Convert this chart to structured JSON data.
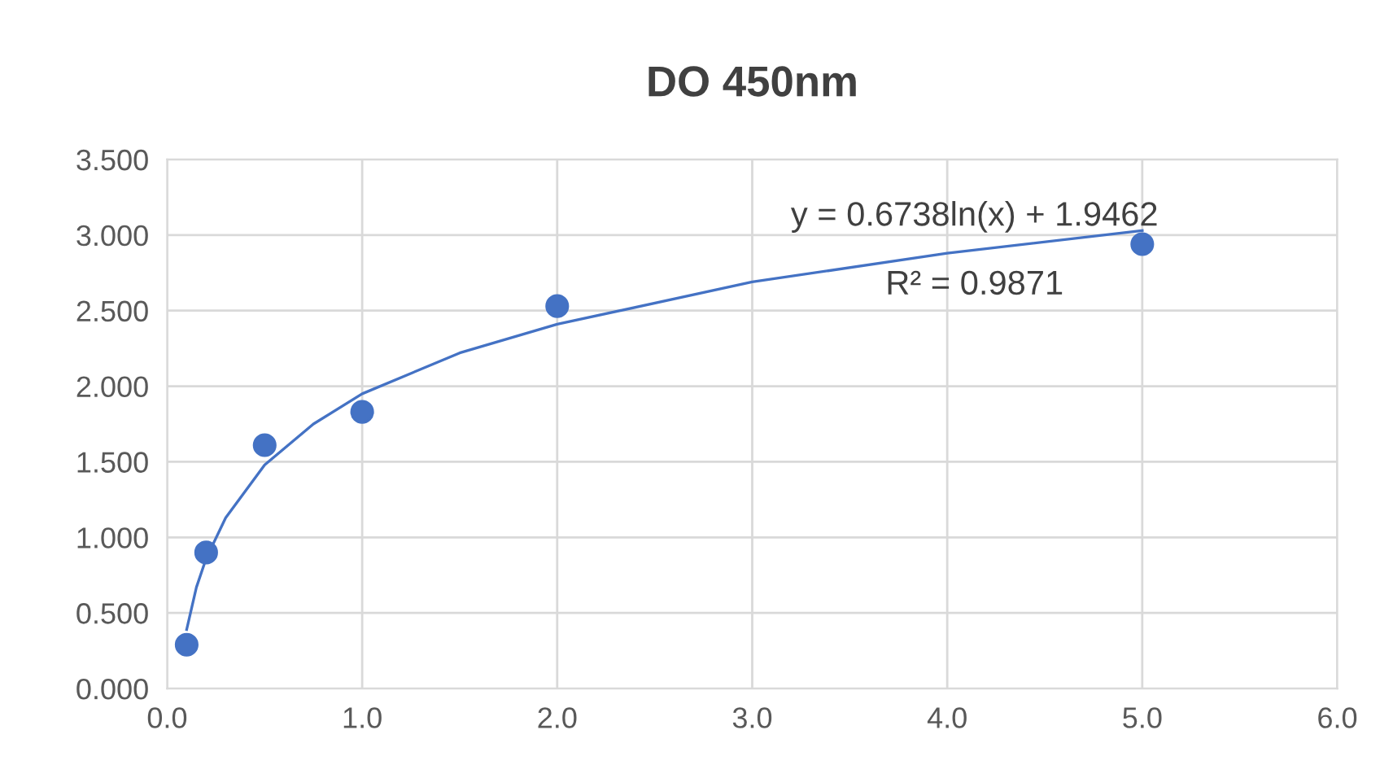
{
  "chart_data": {
    "type": "scatter",
    "title": "DO 450nm",
    "series": [
      {
        "color": "#4472c4",
        "marker": "circle",
        "x": [
          0.1,
          0.2,
          0.5,
          1.0,
          2.0,
          5.0
        ],
        "values": [
          0.29,
          0.9,
          1.61,
          1.83,
          2.53,
          2.94
        ]
      },
      {
        "type": "line",
        "color": "#4472c4",
        "marker": "none",
        "x": [
          0.1,
          0.15,
          0.2,
          0.3,
          0.5,
          0.75,
          1.0,
          1.5,
          2.0,
          3.0,
          4.0,
          5.0
        ],
        "values": [
          0.39,
          0.67,
          0.86,
          1.13,
          1.48,
          1.75,
          1.95,
          2.22,
          2.41,
          2.69,
          2.88,
          3.03
        ]
      }
    ],
    "annotations": [
      "y = 0.6738ln(x) + 1.9462",
      "R² = 0.9871"
    ],
    "xlim": [
      0,
      6
    ],
    "xticks": [
      {
        "value": 0,
        "label": "0.0"
      },
      {
        "value": 1,
        "label": "1.0"
      },
      {
        "value": 2,
        "label": "2.0"
      },
      {
        "value": 3,
        "label": "3.0"
      },
      {
        "value": 4,
        "label": "4.0"
      },
      {
        "value": 5,
        "label": "5.0"
      },
      {
        "value": 6,
        "label": "6.0"
      }
    ],
    "ylim": [
      0,
      3.5
    ],
    "yticks": [
      {
        "value": 0,
        "label": "0.000"
      },
      {
        "value": 0.5,
        "label": "0.500"
      },
      {
        "value": 1,
        "label": "1.000"
      },
      {
        "value": 1.5,
        "label": "1.500"
      },
      {
        "value": 2,
        "label": "2.000"
      },
      {
        "value": 2.5,
        "label": "2.500"
      },
      {
        "value": 3,
        "label": "3.000"
      },
      {
        "value": 3.5,
        "label": "3.500"
      }
    ],
    "grid": true
  }
}
